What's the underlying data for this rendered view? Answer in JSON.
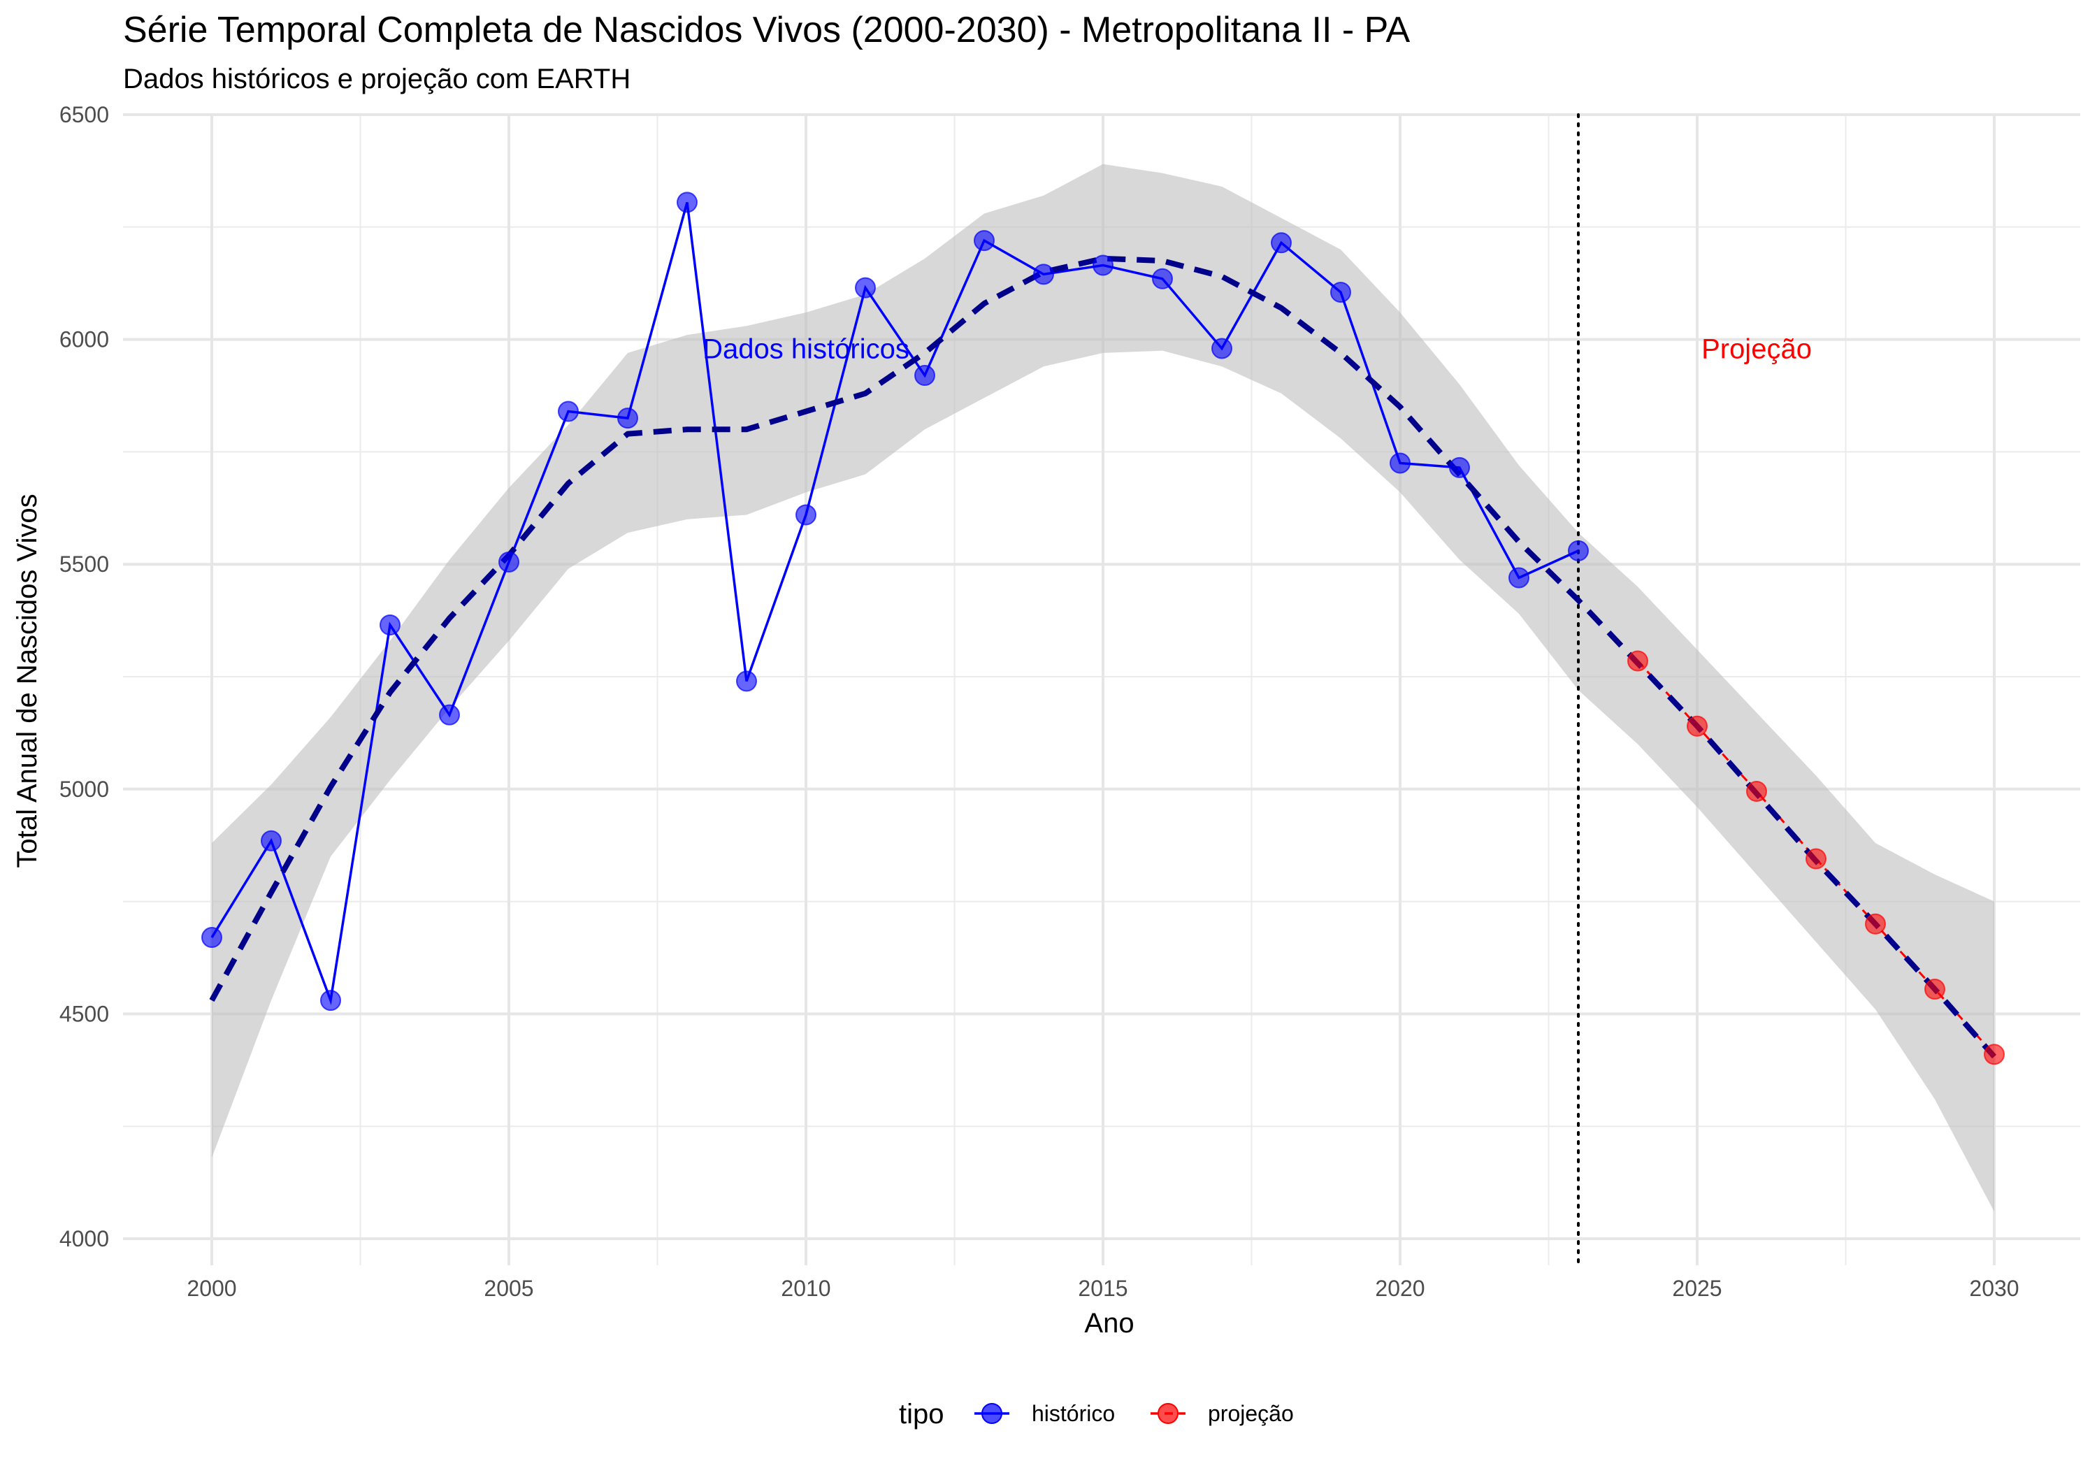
{
  "chart_data": {
    "type": "line",
    "title": "Série Temporal Completa de Nascidos Vivos (2000-2030) -  Metropolitana II - PA",
    "subtitle": "Dados históricos e projeção com EARTH",
    "xlabel": "Ano",
    "ylabel": "Total Anual de Nascidos Vivos",
    "xlim": [
      1998.5,
      2031.5
    ],
    "ylim": [
      3940,
      6500
    ],
    "x_ticks": [
      2000,
      2005,
      2010,
      2015,
      2020,
      2025,
      2030
    ],
    "y_ticks": [
      4000,
      4500,
      5000,
      5500,
      6000,
      6500
    ],
    "grid": true,
    "legend": {
      "title": "tipo",
      "position": "bottom",
      "entries": [
        {
          "label": "histórico",
          "color": "#0000ff"
        },
        {
          "label": "projeção",
          "color": "#ff0000"
        }
      ]
    },
    "series": [
      {
        "name": "histórico",
        "color": "#0000ff",
        "x": [
          2000,
          2001,
          2002,
          2003,
          2004,
          2005,
          2006,
          2007,
          2008,
          2009,
          2010,
          2011,
          2012,
          2013,
          2014,
          2015,
          2016,
          2017,
          2018,
          2019,
          2020,
          2021,
          2022,
          2023
        ],
        "y": [
          4670,
          4885,
          4530,
          5365,
          5165,
          5505,
          5840,
          5825,
          6305,
          5240,
          5610,
          6115,
          5920,
          6220,
          6145,
          6165,
          6135,
          5980,
          6215,
          6105,
          5725,
          5715,
          5470,
          5530
        ]
      },
      {
        "name": "projeção",
        "color": "#ff0000",
        "x": [
          2024,
          2025,
          2026,
          2027,
          2028,
          2029,
          2030
        ],
        "y": [
          5285,
          5140,
          4995,
          4845,
          4700,
          4555,
          4410
        ]
      }
    ],
    "trend": {
      "color": "#00008b",
      "x": [
        2000,
        2001,
        2002,
        2003,
        2004,
        2005,
        2006,
        2007,
        2008,
        2009,
        2010,
        2011,
        2012,
        2013,
        2014,
        2015,
        2016,
        2017,
        2018,
        2019,
        2020,
        2021,
        2022,
        2023,
        2024,
        2025,
        2026,
        2027,
        2028,
        2029,
        2030
      ],
      "y": [
        4530,
        4770,
        5005,
        5215,
        5380,
        5520,
        5680,
        5790,
        5800,
        5800,
        5840,
        5880,
        5970,
        6080,
        6150,
        6180,
        6175,
        6140,
        6070,
        5970,
        5850,
        5700,
        5550,
        5420,
        5280,
        5140,
        4990,
        4840,
        4700,
        4555,
        4405
      ],
      "ci_upper": [
        4880,
        5010,
        5160,
        5330,
        5510,
        5670,
        5810,
        5970,
        6010,
        6030,
        6060,
        6100,
        6180,
        6280,
        6320,
        6390,
        6370,
        6340,
        6270,
        6200,
        6060,
        5900,
        5720,
        5570,
        5450,
        5310,
        5170,
        5030,
        4880,
        4810,
        4750
      ],
      "ci_lower": [
        4180,
        4530,
        4850,
        5020,
        5180,
        5330,
        5490,
        5570,
        5600,
        5610,
        5660,
        5700,
        5800,
        5870,
        5940,
        5970,
        5975,
        5940,
        5880,
        5780,
        5660,
        5510,
        5390,
        5220,
        5100,
        4960,
        4810,
        4660,
        4510,
        4310,
        4060
      ]
    },
    "vline": {
      "x": 2023,
      "style": "dotted",
      "color": "#000000"
    },
    "annotations": [
      {
        "text": "Dados históricos",
        "x": 2010,
        "y": 5980,
        "color": "#0000ff"
      },
      {
        "text": "Projeção",
        "x": 2026,
        "y": 5980,
        "color": "#ff0000"
      }
    ]
  }
}
